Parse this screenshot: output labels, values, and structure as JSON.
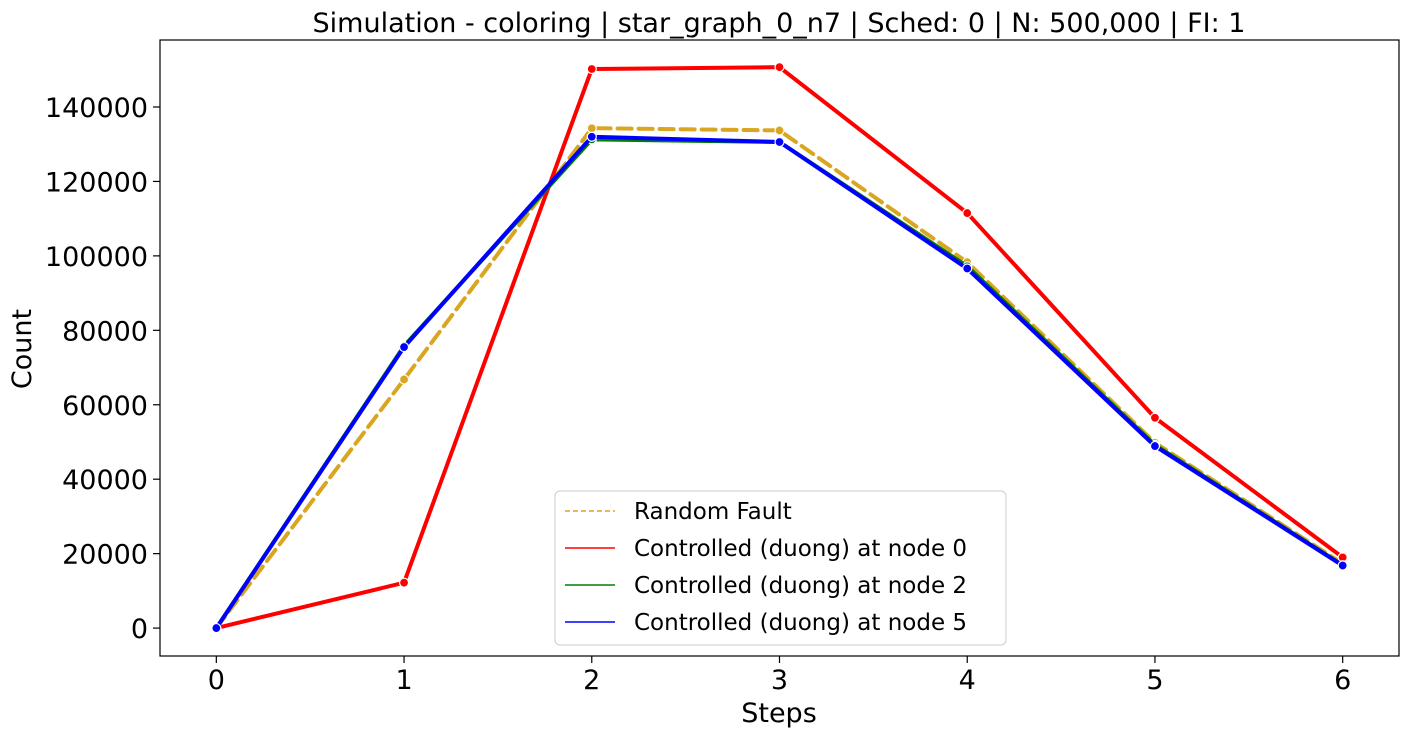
{
  "chart_data": {
    "type": "line",
    "title": "Simulation - coloring | star_graph_0_n7 | Sched: 0 | N: 500,000 | FI: 1",
    "xlabel": "Steps",
    "ylabel": "Count",
    "x": [
      0,
      1,
      2,
      3,
      4,
      5,
      6
    ],
    "xlim": [
      -0.3,
      6.3
    ],
    "ylim": [
      -7500,
      158000
    ],
    "xticks": [
      "0",
      "1",
      "2",
      "3",
      "4",
      "5",
      "6"
    ],
    "yticks": [
      0,
      20000,
      40000,
      60000,
      80000,
      100000,
      120000,
      140000
    ],
    "ytick_labels": [
      "0",
      "20000",
      "40000",
      "60000",
      "80000",
      "100000",
      "120000",
      "140000"
    ],
    "grid": false,
    "legend_position": "bottom-center",
    "series": [
      {
        "name": "Random Fault",
        "color": "#DAA520",
        "dashed": true,
        "values": [
          0,
          66800,
          134300,
          133700,
          98300,
          49800,
          17300
        ]
      },
      {
        "name": "Controlled (duong) at node 0",
        "color": "#FF0000",
        "dashed": false,
        "values": [
          0,
          12200,
          150200,
          150700,
          111500,
          56500,
          19000
        ]
      },
      {
        "name": "Controlled (duong) at node 2",
        "color": "#008000",
        "dashed": false,
        "values": [
          0,
          75800,
          131300,
          130600,
          97200,
          49200,
          16900
        ]
      },
      {
        "name": "Controlled (duong) at node 5",
        "color": "#0000FF",
        "dashed": false,
        "values": [
          0,
          75500,
          132000,
          130600,
          96600,
          48900,
          16800
        ]
      }
    ]
  }
}
